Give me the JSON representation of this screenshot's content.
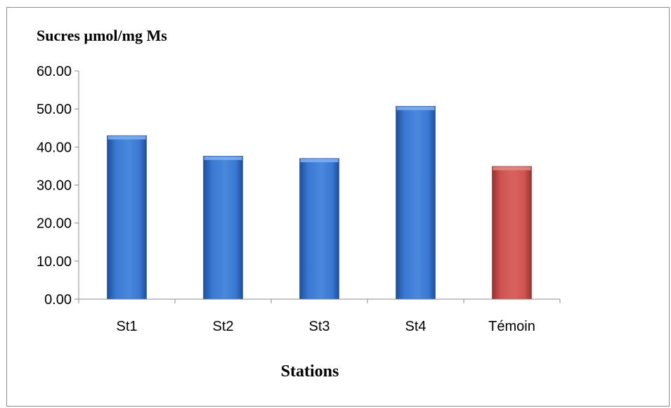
{
  "chart_data": {
    "type": "bar",
    "title": "",
    "ylabel": "Sucres µmol/mg Ms",
    "xlabel": "Stations",
    "categories": [
      "St1",
      "St2",
      "St3",
      "St4",
      "Témoin"
    ],
    "values": [
      43.0,
      37.6,
      37.0,
      50.7,
      34.9
    ],
    "ylim": [
      0,
      60
    ],
    "ytick_step": 10,
    "ytick_labels": [
      "0.00",
      "10.00",
      "20.00",
      "30.00",
      "40.00",
      "50.00",
      "60.00"
    ],
    "grid": false,
    "legend": "none",
    "colors": {
      "default_bar": "#3a78d2",
      "control_bar": "#cf5451",
      "axis": "#8c8c8c"
    }
  }
}
